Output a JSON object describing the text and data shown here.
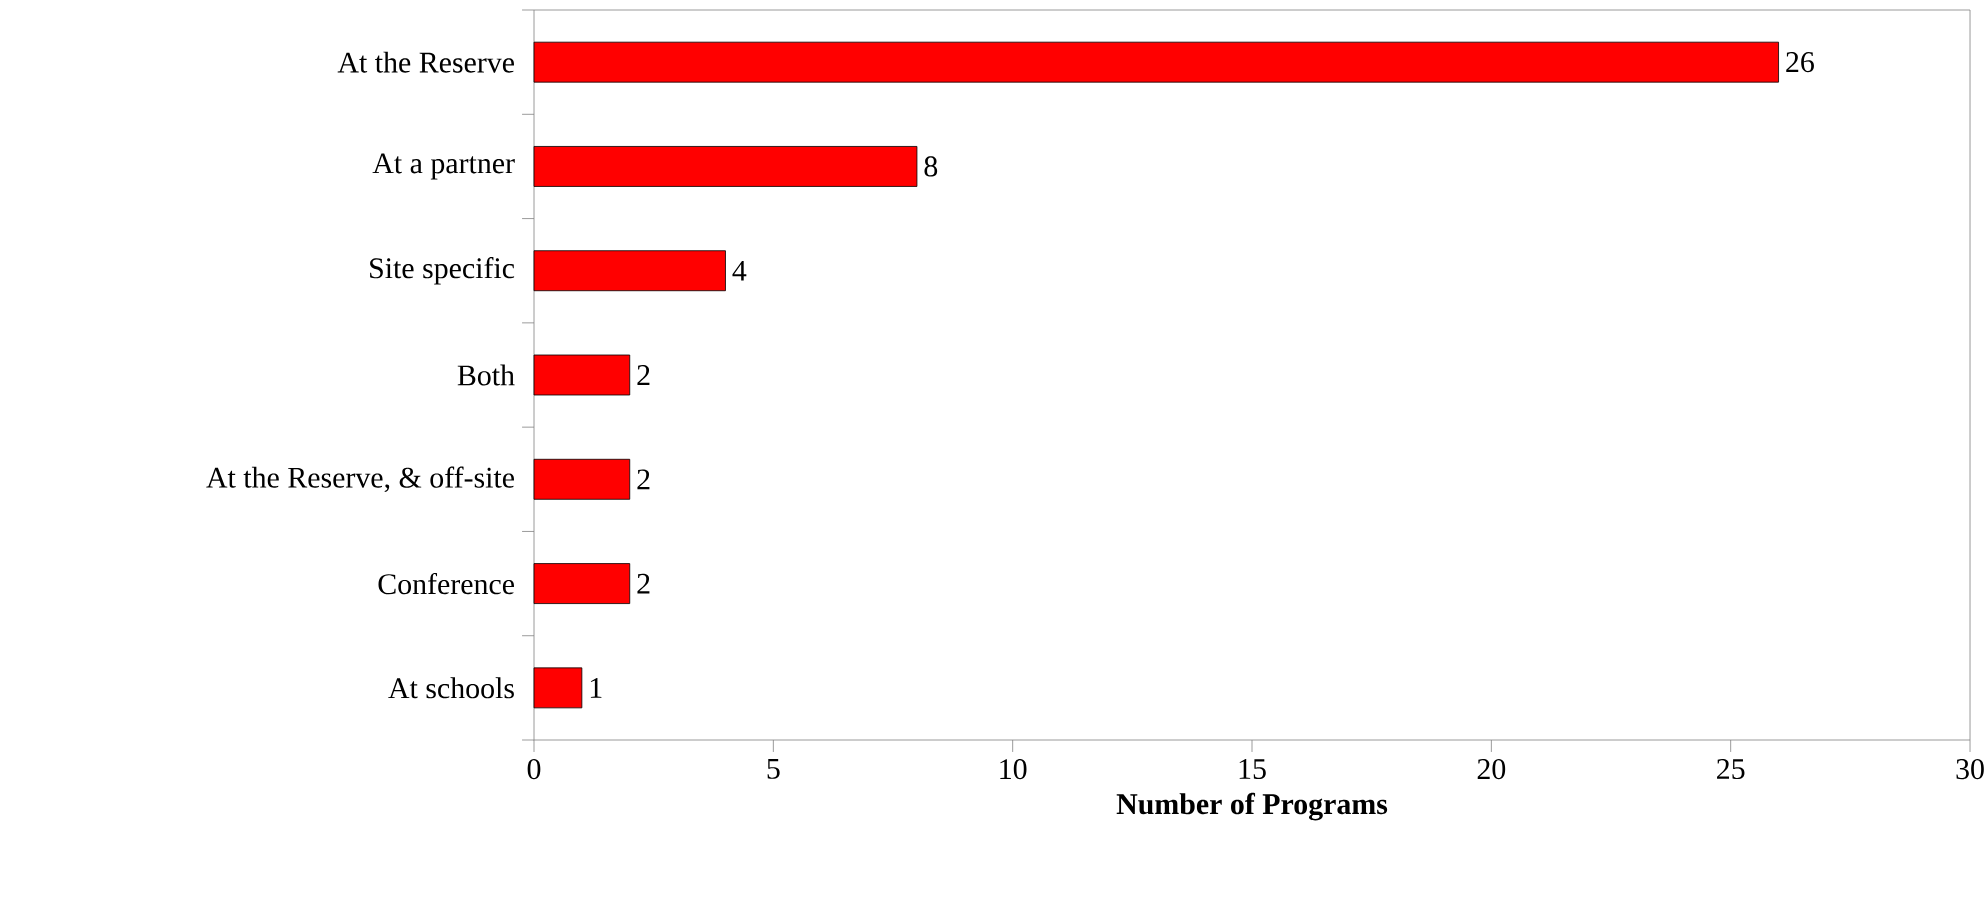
{
  "chart_data": {
    "type": "bar",
    "orientation": "horizontal",
    "xlabel": "Number of Programs",
    "categories": [
      "At the Reserve",
      "At a partner",
      "Site specific",
      "Both",
      "At the Reserve, & off-site",
      "Conference",
      "At schools"
    ],
    "values": [
      26,
      8,
      4,
      2,
      2,
      2,
      1
    ],
    "color": "#ff0000",
    "xlim": [
      0,
      30
    ],
    "xticks": [
      0,
      5,
      10,
      15,
      20,
      25,
      30
    ],
    "data_labels": true
  }
}
